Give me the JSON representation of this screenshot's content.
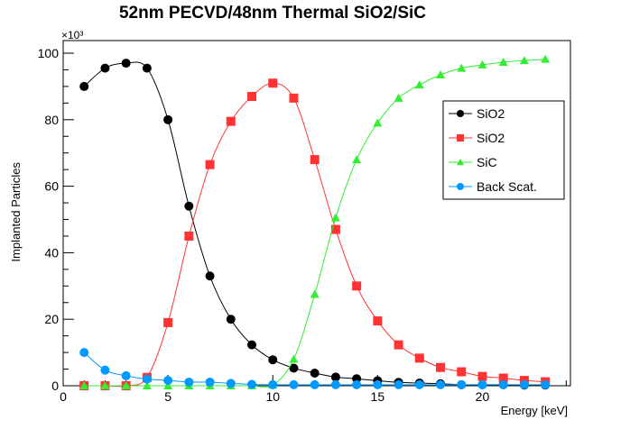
{
  "chart_data": {
    "type": "line",
    "title": "52nm PECVD/48nm Thermal SiO2/SiC",
    "xlabel": "Energy [keV]",
    "ylabel": "Implanted Particles",
    "y_multiplier": "×10³",
    "xlim": [
      0,
      24.2
    ],
    "ylim": [
      0,
      103.8
    ],
    "x_ticks": [
      "0",
      "5",
      "10",
      "15",
      "20"
    ],
    "y_ticks": [
      "0",
      "20",
      "40",
      "60",
      "80",
      "100"
    ],
    "grid": false,
    "legend_position": "right",
    "x": [
      1,
      2,
      3,
      4,
      5,
      6,
      7,
      8,
      9,
      10,
      11,
      12,
      13,
      14,
      15,
      16,
      17,
      18,
      19,
      20,
      21,
      22,
      23
    ],
    "series": [
      {
        "name": "SiO2",
        "color": "#000000",
        "marker": "circle",
        "values": [
          90,
          95.5,
          97,
          95.5,
          80,
          54,
          33,
          20,
          12.3,
          7.8,
          5.3,
          3.8,
          2.6,
          2.1,
          1.5,
          1.0,
          0.8,
          0.6,
          0.3,
          0.3,
          0.3,
          0.2,
          0.2
        ]
      },
      {
        "name": "SiO2",
        "color": "#ff3333",
        "marker": "square",
        "values": [
          0,
          0,
          0,
          2.5,
          19,
          45,
          66.5,
          79.5,
          87,
          91,
          86.5,
          68,
          47,
          30,
          19.5,
          12.3,
          8.3,
          5.5,
          4.2,
          2.8,
          2.3,
          1.6,
          1.2
        ]
      },
      {
        "name": "SiC",
        "color": "#33ee33",
        "marker": "triangle",
        "values": [
          0,
          0,
          0,
          0,
          0,
          0,
          0,
          0,
          0,
          0.2,
          8,
          27.5,
          50.5,
          68,
          79,
          86.5,
          90.5,
          93.5,
          95.5,
          96.5,
          97.3,
          97.8,
          98.2
        ]
      },
      {
        "name": "Back Scat.",
        "color": "#0099ff",
        "marker": "circle",
        "values": [
          10,
          4.7,
          3,
          2,
          1.6,
          1.1,
          1.1,
          0.7,
          0.4,
          0.3,
          0.3,
          0.3,
          0.3,
          0.3,
          0.3,
          0.3,
          0.3,
          0.3,
          0.3,
          0.3,
          0.3,
          0.3,
          0.3
        ]
      }
    ]
  }
}
